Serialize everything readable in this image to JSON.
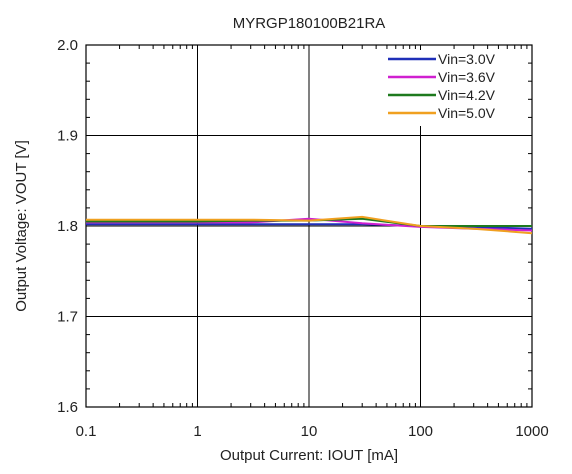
{
  "chart_data": {
    "type": "line",
    "title": "MYRGP180100B21RA",
    "xlabel": "Output Current: IOUT [mA]",
    "ylabel": "Output Voltage: VOUT [V]",
    "x_scale": "log",
    "xlim": [
      0.1,
      1000
    ],
    "ylim": [
      1.6,
      2.0
    ],
    "x_ticks": [
      "0.1",
      "1",
      "10",
      "100",
      "1000"
    ],
    "y_ticks": [
      "1.6",
      "1.7",
      "1.8",
      "1.9",
      "2.0"
    ],
    "grid": true,
    "legend_position": "top-right",
    "x": [
      0.1,
      1,
      3,
      10,
      30,
      100,
      300,
      1000
    ],
    "series": [
      {
        "name": "Vin=3.0V",
        "color": "#1f2fb8",
        "values": [
          1.802,
          1.802,
          1.802,
          1.802,
          1.802,
          1.8,
          1.799,
          1.797
        ]
      },
      {
        "name": "Vin=3.6V",
        "color": "#d020d0",
        "values": [
          1.804,
          1.804,
          1.804,
          1.808,
          1.803,
          1.799,
          1.797,
          1.795
        ]
      },
      {
        "name": "Vin=4.2V",
        "color": "#1e7a1e",
        "values": [
          1.805,
          1.805,
          1.806,
          1.806,
          1.808,
          1.8,
          1.8,
          1.8
        ]
      },
      {
        "name": "Vin=5.0V",
        "color": "#f0a020",
        "values": [
          1.807,
          1.807,
          1.807,
          1.806,
          1.81,
          1.8,
          1.797,
          1.792
        ]
      }
    ]
  }
}
